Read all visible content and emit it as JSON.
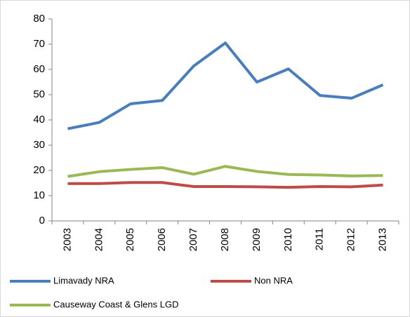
{
  "chart_data": {
    "type": "line",
    "categories": [
      "2003",
      "2004",
      "2005",
      "2006",
      "2007",
      "2008",
      "2009",
      "2010",
      "2011",
      "2012",
      "2013"
    ],
    "series": [
      {
        "name": "Limavady NRA",
        "color": "#4a7ebb",
        "values": [
          36.5,
          39,
          46.4,
          47.7,
          61.4,
          70.5,
          55,
          60.2,
          49.7,
          48.6,
          53.9
        ]
      },
      {
        "name": "Non NRA",
        "color": "#be4b48",
        "values": [
          14.8,
          14.8,
          15.2,
          15.2,
          13.6,
          13.6,
          13.5,
          13.3,
          13.6,
          13.5,
          14.2
        ]
      },
      {
        "name": "Causeway Coast & Glens LGD",
        "color": "#98b954",
        "values": [
          17.6,
          19.5,
          20.4,
          21.1,
          18.5,
          21.6,
          19.6,
          18.4,
          18.2,
          17.8,
          18.0
        ]
      }
    ],
    "ylim": [
      0,
      80
    ],
    "yticks": [
      0,
      10,
      20,
      30,
      40,
      50,
      60,
      70,
      80
    ],
    "grid": false,
    "legend": "bottom"
  }
}
